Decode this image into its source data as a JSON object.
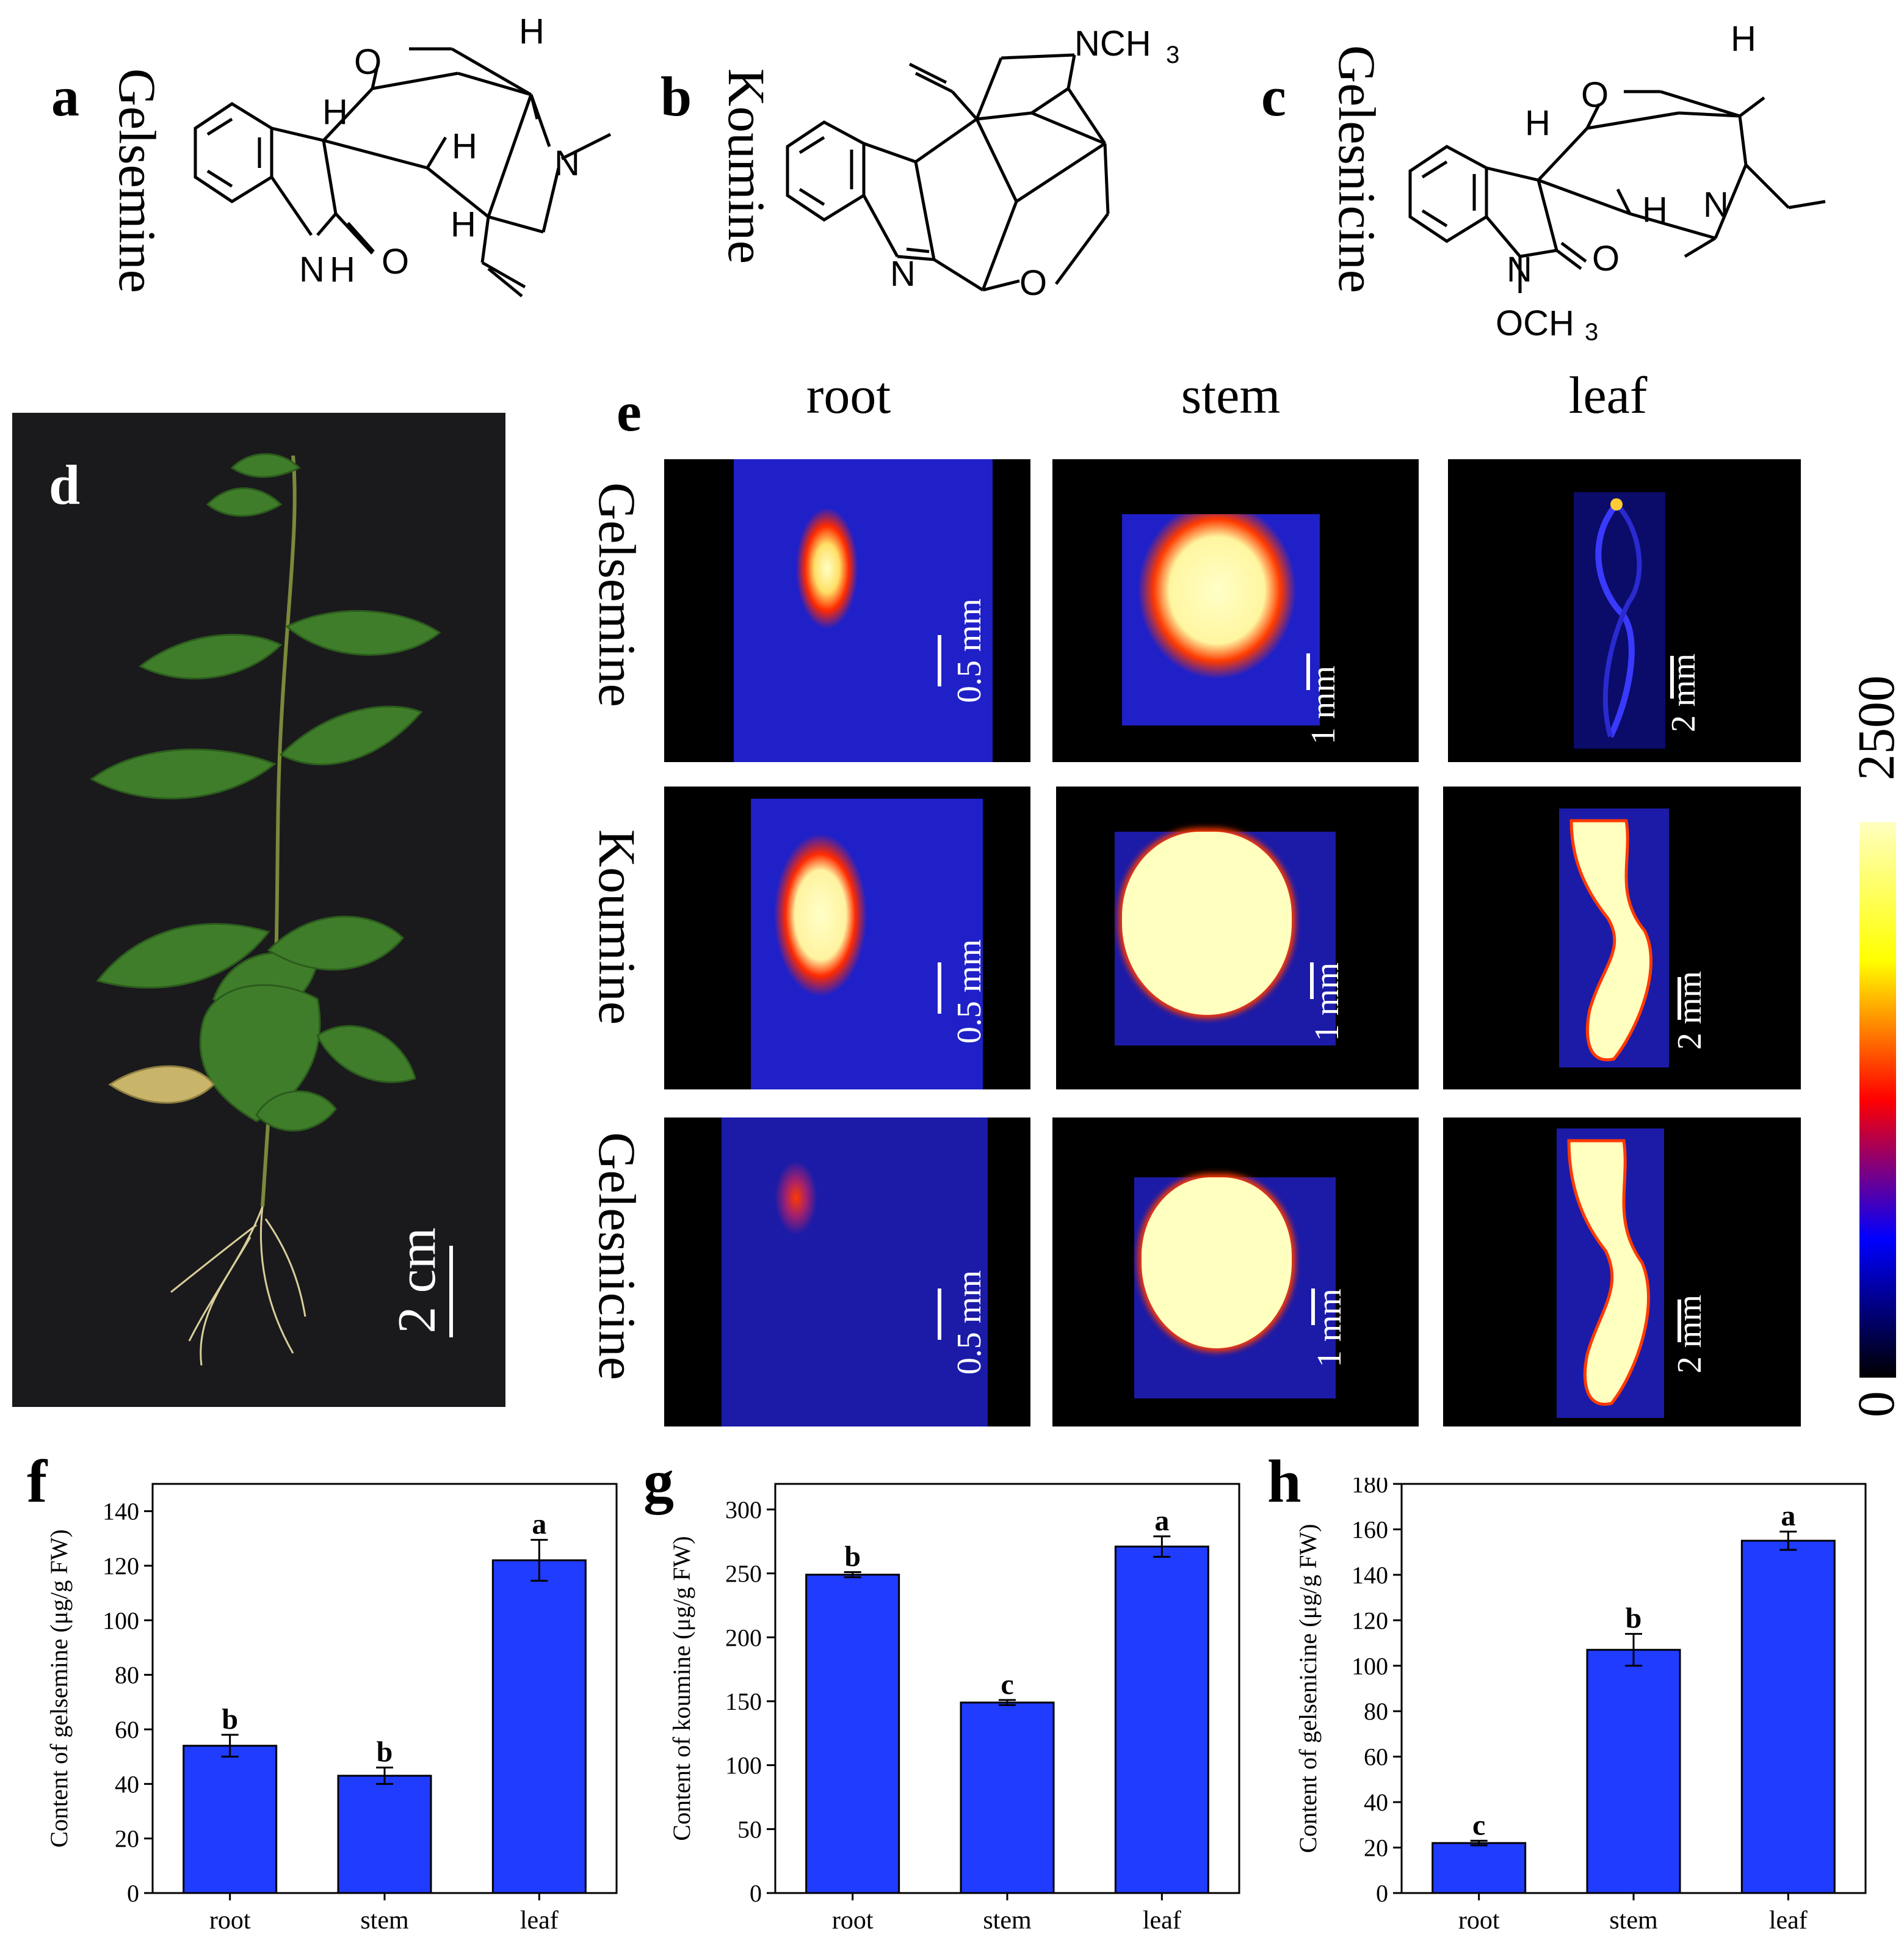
{
  "panels": {
    "a": {
      "letter": "a",
      "name": "Gelsemine"
    },
    "b": {
      "letter": "b",
      "name": "Koumine"
    },
    "c": {
      "letter": "c",
      "name": "Gelesnicine"
    },
    "d": {
      "letter": "d",
      "scale": "2 cm"
    },
    "e": {
      "letter": "e"
    },
    "f": {
      "letter": "f"
    },
    "g": {
      "letter": "g"
    },
    "h": {
      "letter": "h"
    }
  },
  "structure_labels": {
    "a": {
      "O": "O",
      "H1": "H",
      "H2": "H",
      "H3": "H",
      "H4": "H",
      "N": "N",
      "NH": "N",
      "NH_H": "H",
      "O2": "O"
    },
    "b": {
      "NCH3": "NCH",
      "sub3": "3",
      "N": "N",
      "O": "O"
    },
    "c": {
      "O": "O",
      "H1": "H",
      "H2": "H",
      "H3": "H",
      "N": "N",
      "N2": "N",
      "O2": "O",
      "OCH3": "OCH",
      "sub3": "3"
    }
  },
  "imaging": {
    "columns": [
      "root",
      "stem",
      "leaf"
    ],
    "rows": [
      "Gelsemine",
      "Koumine",
      "Gelesnicine"
    ],
    "scales": [
      "0.5 mm",
      "1 mm",
      "2 mm"
    ],
    "colorbar": {
      "max": "2500",
      "min": "0",
      "colors": [
        "#000000",
        "#0000ff",
        "#ff0000",
        "#ffff00",
        "#ffffc0"
      ]
    }
  },
  "chart_data": [
    {
      "type": "bar",
      "categories": [
        "root",
        "stem",
        "leaf"
      ],
      "values": [
        54,
        43,
        122
      ],
      "errors": [
        4,
        3,
        7.5
      ],
      "letters": [
        "b",
        "b",
        "a"
      ],
      "ylabel": "Content of gelsemine (μg/g FW)",
      "ylim": [
        0,
        150
      ],
      "yticks": [
        "0",
        "20",
        "40",
        "60",
        "80",
        "100",
        "120",
        "140"
      ],
      "bar_color": "#1f3cff"
    },
    {
      "type": "bar",
      "categories": [
        "root",
        "stem",
        "leaf"
      ],
      "values": [
        249,
        149,
        271
      ],
      "errors": [
        2,
        2,
        8
      ],
      "letters": [
        "b",
        "c",
        "a"
      ],
      "ylabel": "Content of koumine (μg/g FW)",
      "ylim": [
        0,
        320
      ],
      "yticks": [
        "0",
        "50",
        "100",
        "150",
        "200",
        "250",
        "300"
      ],
      "bar_color": "#1f3cff"
    },
    {
      "type": "bar",
      "categories": [
        "root",
        "stem",
        "leaf"
      ],
      "values": [
        22,
        107,
        155
      ],
      "errors": [
        1,
        7,
        4
      ],
      "letters": [
        "c",
        "b",
        "a"
      ],
      "ylabel": "Content of gelsenicine (μg/g FW)",
      "ylim": [
        0,
        180
      ],
      "yticks": [
        "0",
        "20",
        "40",
        "60",
        "80",
        "100",
        "120",
        "140",
        "160",
        "180"
      ],
      "bar_color": "#1f3cff"
    }
  ]
}
